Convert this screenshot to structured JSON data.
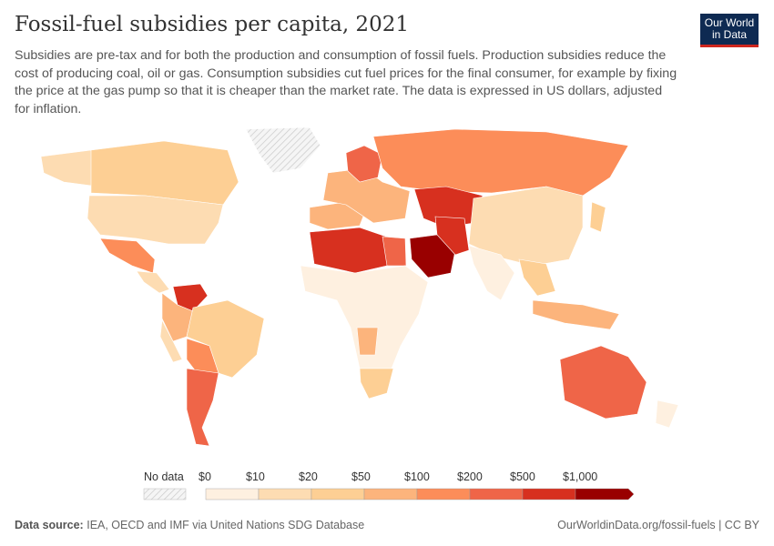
{
  "header": {
    "title": "Fossil-fuel subsidies per capita, 2021",
    "subtitle": "Subsidies are pre-tax and for both the production and consumption of fossil fuels. Production subsidies reduce the cost of producing coal, oil or gas. Consumption subsidies cut fuel prices for the final consumer, for example by fixing the price at the gas pump so that it is cheaper than the market rate. The data is expressed in US dollars, adjusted for inflation.",
    "logo": "Our World in Data"
  },
  "legend": {
    "no_data_label": "No data",
    "no_data_color": "#e0e0e0",
    "bins": [
      {
        "label": "$0",
        "color": "#fef0e0"
      },
      {
        "label": "$10",
        "color": "#fddcb2"
      },
      {
        "label": "$20",
        "color": "#fdcf94"
      },
      {
        "label": "$50",
        "color": "#fcb47c"
      },
      {
        "label": "$100",
        "color": "#fc8d59"
      },
      {
        "label": "$200",
        "color": "#ef6548"
      },
      {
        "label": "$500",
        "color": "#d7301f"
      },
      {
        "label": "$1,000",
        "color": "#990000"
      }
    ]
  },
  "footer": {
    "source_label": "Data source:",
    "source": "IEA, OECD and IMF via United Nations SDG Database",
    "link": "OurWorldinData.org/fossil-fuels | CC BY"
  }
}
